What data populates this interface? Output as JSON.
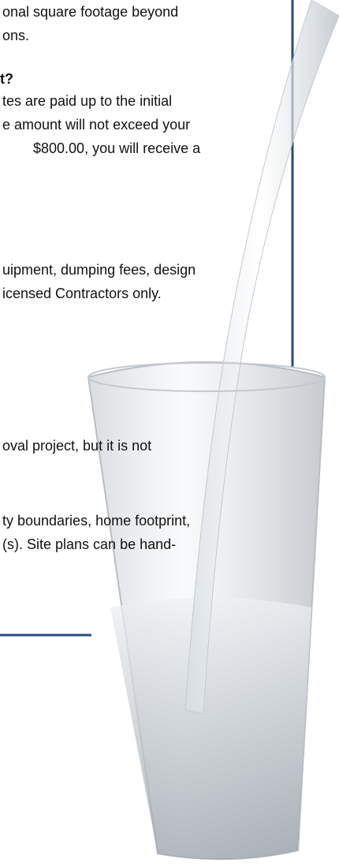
{
  "lines": [
    "onal square footage beyond",
    "ons.",
    "t?",
    "tes are paid up to the initial",
    "e amount will not exceed your",
    "$800.00, you will receive a",
    "uipment, dumping fees, design",
    "icensed Contractors only.",
    "oval project, but it is not",
    "ty boundaries, home footprint,",
    "(s). Site plans can be hand-"
  ]
}
